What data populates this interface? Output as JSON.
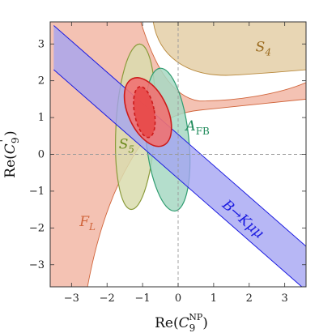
{
  "chart_data": {
    "type": "contour",
    "xlabel": "Re(C9NP)",
    "ylabel": "Re(C9')",
    "xlim": [
      -3.6,
      3.6
    ],
    "ylim": [
      -3.6,
      3.6
    ],
    "x_ticks": [
      -3,
      -2,
      -1,
      0,
      1,
      2,
      3
    ],
    "y_ticks": [
      -3,
      -2,
      -1,
      0,
      1,
      2,
      3
    ],
    "x_tick_labels": [
      "−3",
      "−2",
      "−1",
      "0",
      "1",
      "2",
      "3"
    ],
    "y_tick_labels": [
      "−3",
      "−2",
      "−1",
      "0",
      "1",
      "2",
      "3"
    ],
    "dashed_reference_lines": {
      "x": 0,
      "y": 0
    },
    "colors": {
      "FL": "#f4c2b3",
      "FL_edge": "#d0643a",
      "S4": "#e8d6b4",
      "S4_edge": "#b98a3e",
      "S4_text": "#9a6a1e",
      "S5": "#d9dcae",
      "S5_edge": "#8a9a3a",
      "S5_text": "#6b8a1e",
      "AFB": "#a7d8c3",
      "AFB_edge": "#2e9c70",
      "AFB_text": "#1e8a5a",
      "BKmumu": "#a3a3f2",
      "BKmumu_edge": "#1b1be0",
      "BKmumu_text": "#1b1be0",
      "combined_outer": "#f07272",
      "combined_inner": "#e84b4b",
      "combined_edge": "#cc1a1a"
    },
    "regions": [
      {
        "name": "S4",
        "label_base": "S",
        "label_sub": "4",
        "label_pos": [
          2.4,
          2.8
        ]
      },
      {
        "name": "S5",
        "label_base": "S",
        "label_sub": "5",
        "label_pos": [
          -1.45,
          0.15
        ]
      },
      {
        "name": "AFB",
        "label_base": "A",
        "label_sub": "FB",
        "label_pos": [
          0.55,
          0.65
        ]
      },
      {
        "name": "FL",
        "label_base": "F",
        "label_sub": "L",
        "label_pos": [
          -2.55,
          -1.95
        ]
      },
      {
        "name": "B→Kμμ",
        "label_text": "B→Kμμ",
        "label_pos": [
          1.75,
          -1.85
        ]
      }
    ],
    "band": {
      "name": "B→Kμμ",
      "upper_line": [
        [
          -3.5,
          3.5
        ],
        [
          3.6,
          -2.5
        ]
      ],
      "lower_line": [
        [
          -3.5,
          2.3
        ],
        [
          3.6,
          -3.7
        ]
      ]
    },
    "ellipses": [
      {
        "name": "S5",
        "center": [
          -1.2,
          0.75
        ],
        "rx": 0.55,
        "ry": 2.25,
        "angle": 3
      },
      {
        "name": "AFB",
        "center": [
          -0.3,
          0.4
        ],
        "rx": 0.6,
        "ry": 1.95,
        "angle": -6
      },
      {
        "name": "combined_1sigma_outer",
        "center": [
          -0.85,
          1.15
        ],
        "rx": 0.55,
        "ry": 1.0,
        "angle": -25
      },
      {
        "name": "combined_1sigma_inner",
        "center": [
          -0.95,
          1.15
        ],
        "rx": 0.28,
        "ry": 0.7,
        "angle": -10
      }
    ]
  }
}
